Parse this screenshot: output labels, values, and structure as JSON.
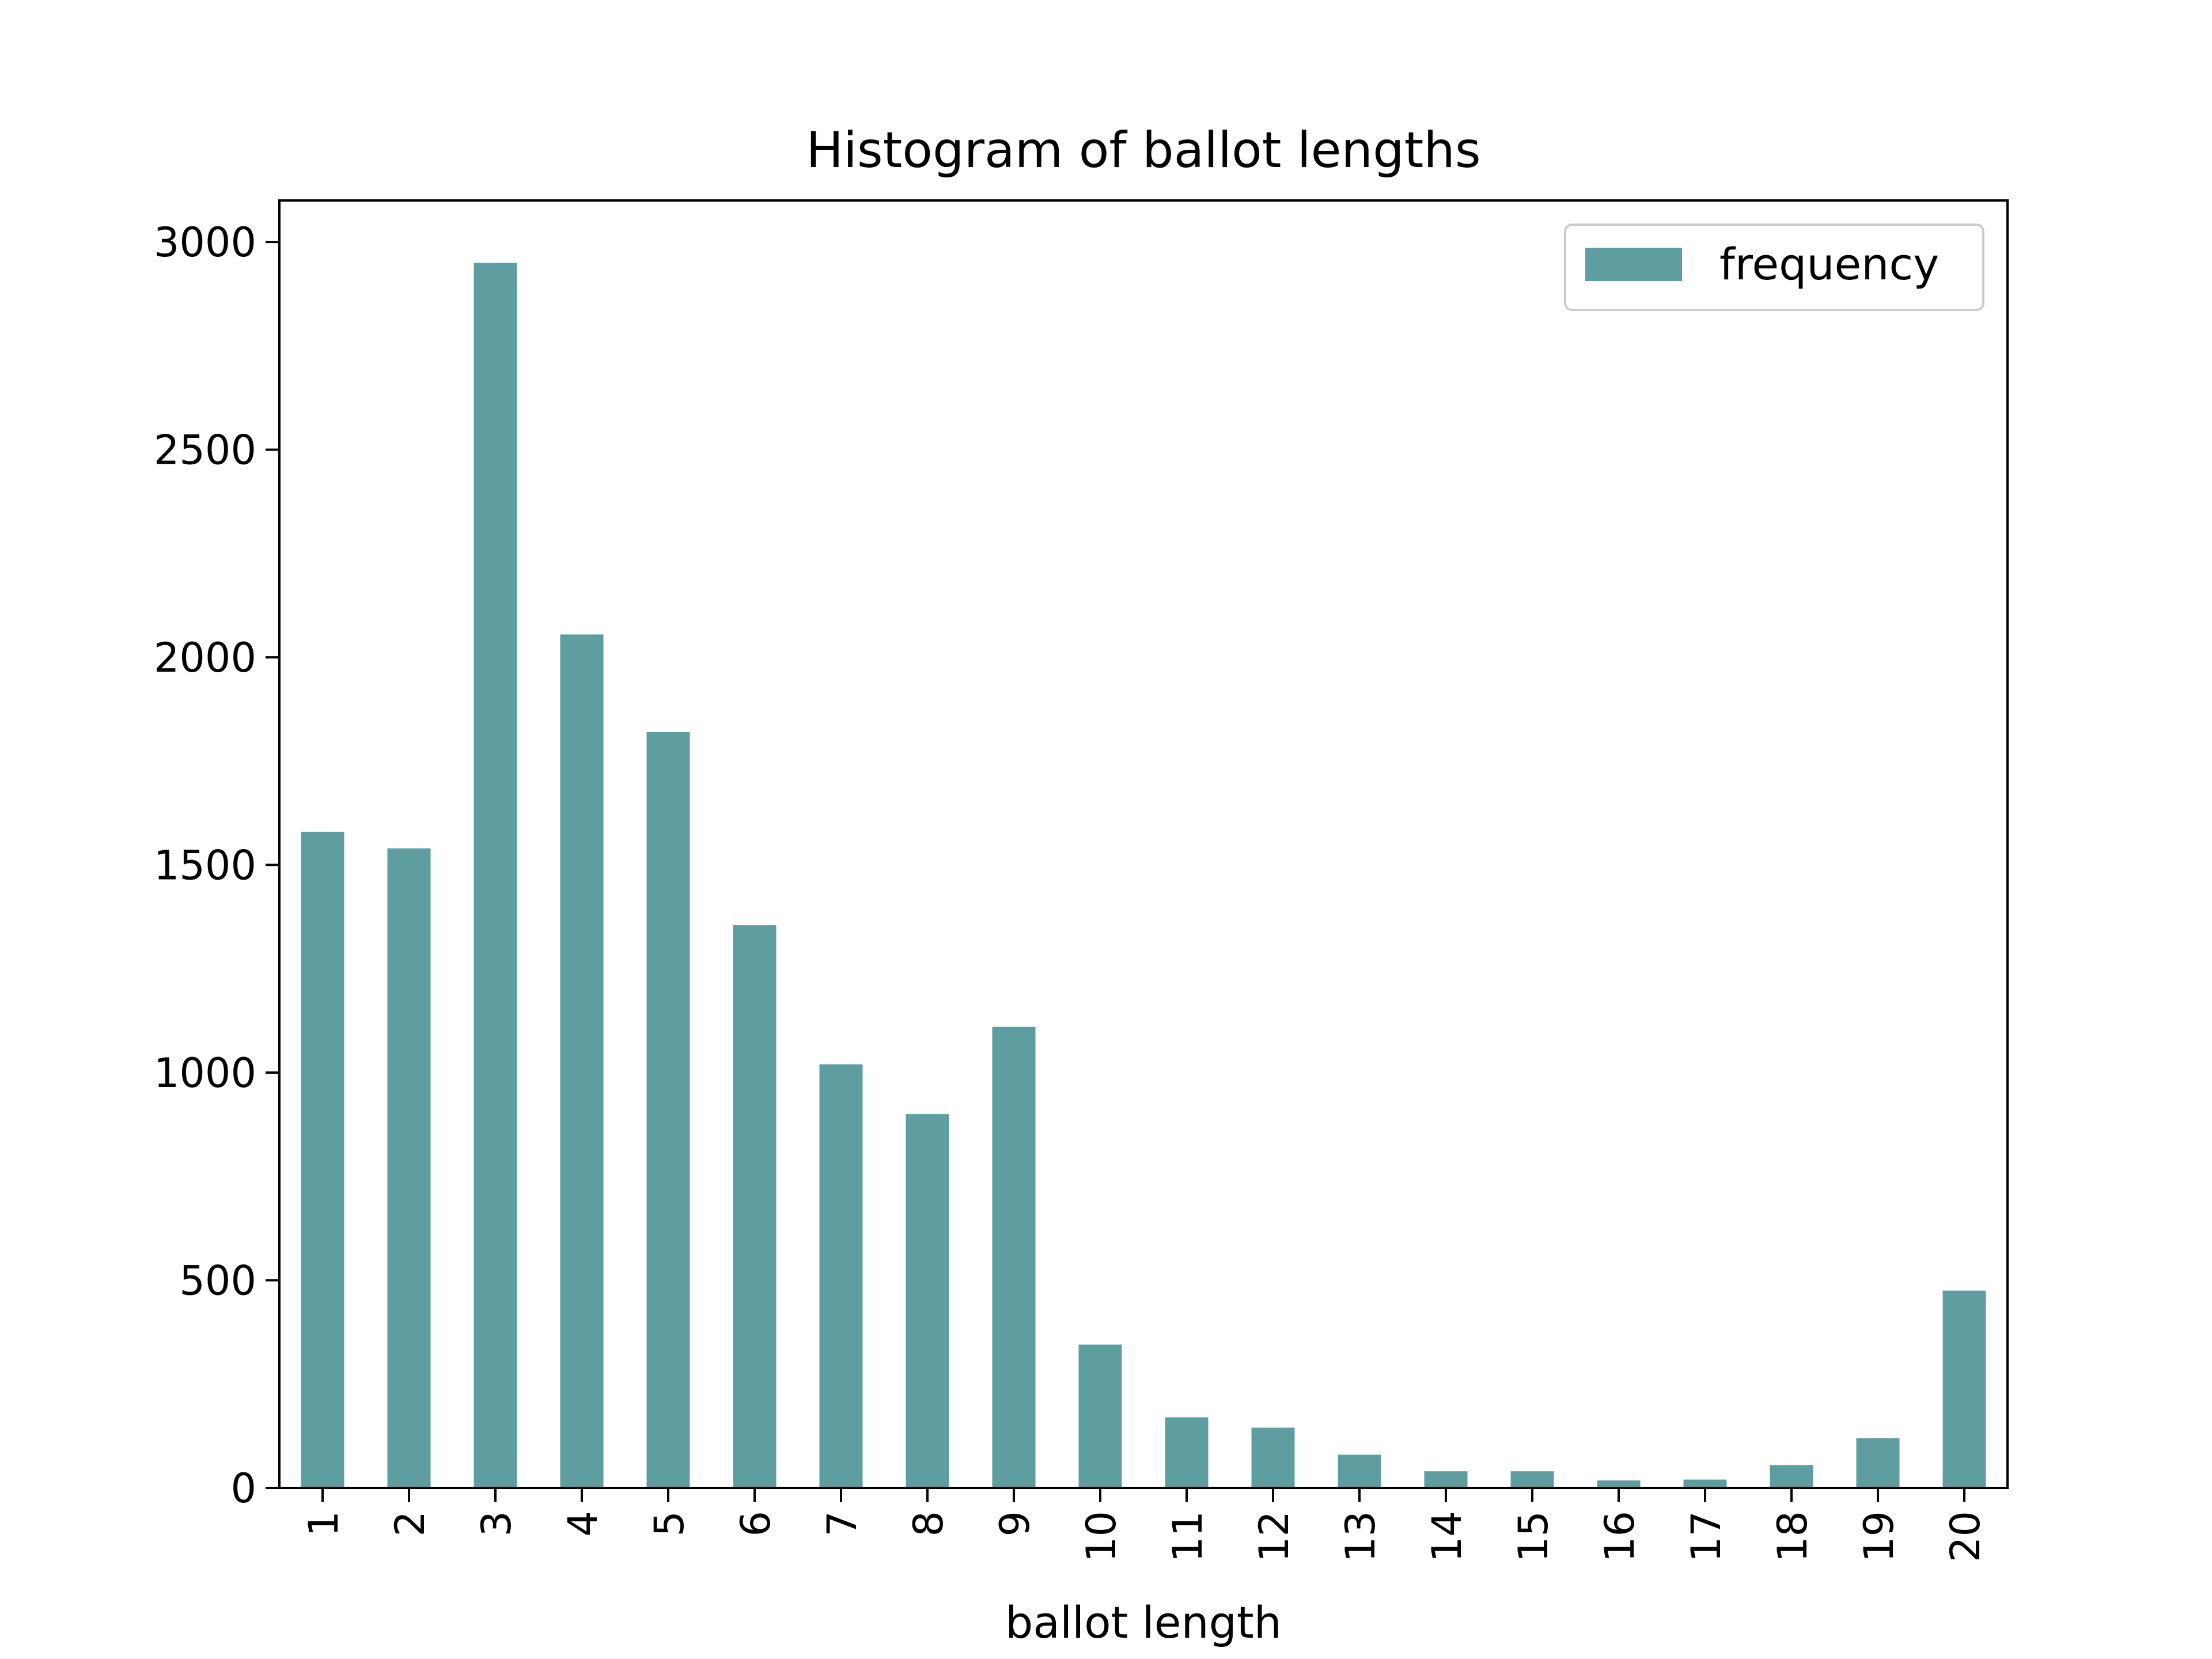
{
  "chart_data": {
    "type": "bar",
    "title": "Histogram of ballot lengths",
    "xlabel": "ballot length",
    "ylabel": "",
    "categories": [
      "1",
      "2",
      "3",
      "4",
      "5",
      "6",
      "7",
      "8",
      "9",
      "10",
      "11",
      "12",
      "13",
      "14",
      "15",
      "16",
      "17",
      "18",
      "19",
      "20"
    ],
    "series": [
      {
        "name": "frequency",
        "color": "#5f9ea0",
        "values": [
          1580,
          1540,
          2950,
          2055,
          1820,
          1355,
          1020,
          900,
          1110,
          345,
          170,
          145,
          80,
          40,
          40,
          18,
          20,
          55,
          120,
          475
        ]
      }
    ],
    "ylim": [
      0,
      3100
    ],
    "yticks": [
      "0",
      "500",
      "1000",
      "1500",
      "2000",
      "2500",
      "3000"
    ],
    "grid": false,
    "legend_position": "top-right",
    "x_tick_rotation": "vertical"
  }
}
